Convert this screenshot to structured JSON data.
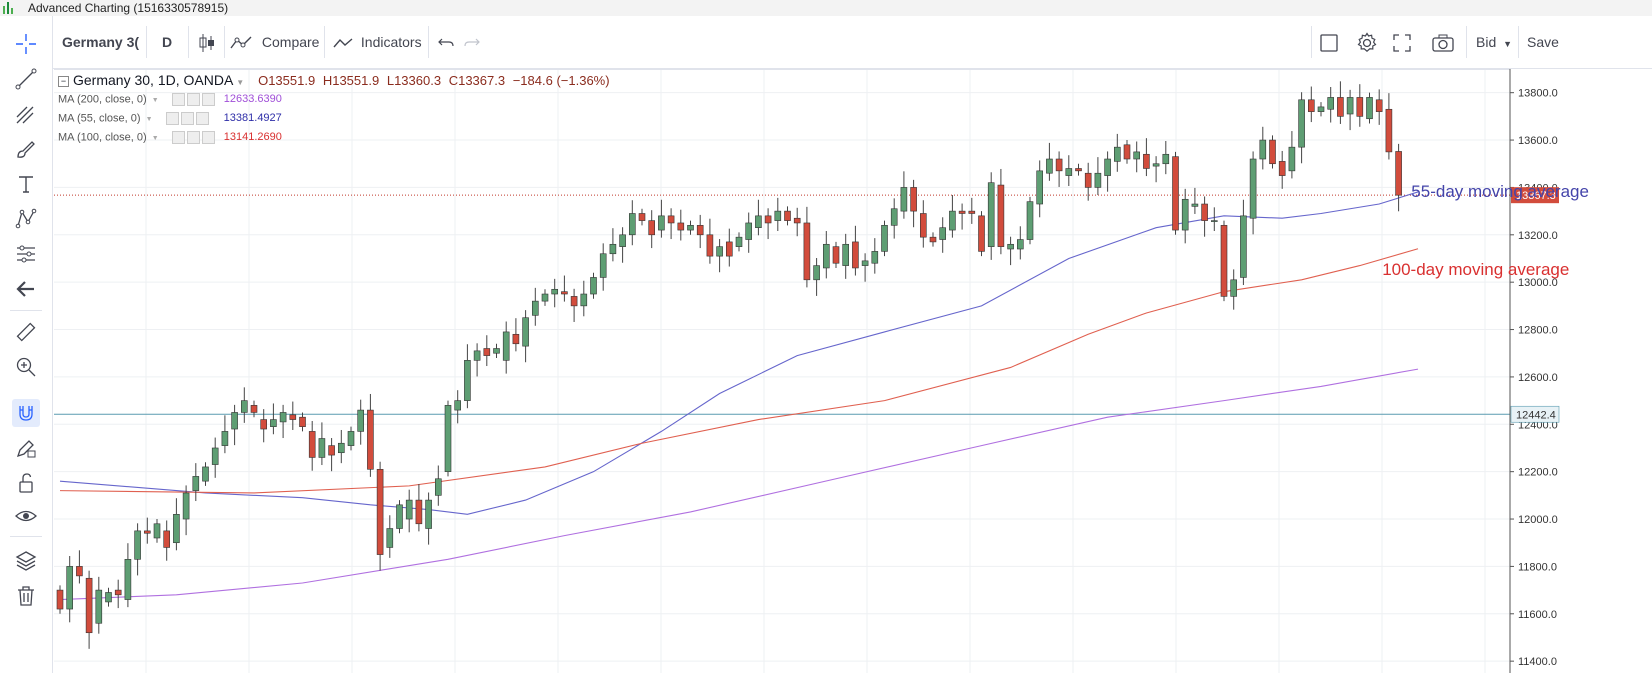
{
  "window": {
    "title": "Advanced Charting (1516330578915)"
  },
  "toolbar": {
    "symbol": "Germany 3(",
    "interval": "D",
    "compare_label": "Compare",
    "indicators_label": "Indicators",
    "price_type": "Bid",
    "save_label": "Save"
  },
  "legend": {
    "symbol_line": "Germany 30, 1D, OANDA",
    "open": "O13551.9",
    "high": "H13551.9",
    "low": "L13360.3",
    "close": "C13367.3",
    "change": "−184.6 (−1.36%)",
    "ma200": {
      "label": "MA (200, close, 0)",
      "value": "12633.6390",
      "color": "#a04fd8"
    },
    "ma55": {
      "label": "MA (55, close, 0)",
      "value": "13381.4927",
      "color": "#2e2ea8"
    },
    "ma100": {
      "label": "MA (100, close, 0)",
      "value": "13141.2690",
      "color": "#d93030"
    }
  },
  "colors": {
    "up": "#5e9e73",
    "down": "#d24c3c",
    "ma55": "#6666cc",
    "ma100": "#e06050",
    "ma200": "#b070e0",
    "accent": "#2962ff"
  },
  "left_icons": [
    "crosshair-icon",
    "trend-line-icon",
    "pitchfork-icon",
    "brush-icon",
    "text-icon",
    "pattern-icon",
    "measure-icon",
    "back-arrow-icon",
    "ruler-icon",
    "zoom-in-icon",
    "magnet-icon",
    "lock-drawing-icon",
    "unlock-icon",
    "eye-icon",
    "layers-icon",
    "trash-icon"
  ],
  "chart_data": {
    "type": "candlestick",
    "ylim": [
      11350,
      13900
    ],
    "yticks": [
      "13800.0",
      "13600.0",
      "13400.0",
      "13200.0",
      "13000.0",
      "12800.0",
      "12600.0",
      "12400.0",
      "12200.0",
      "12000.0",
      "11800.0",
      "11600.0",
      "11400.0"
    ],
    "ytick_values": [
      13800,
      13600,
      13400,
      13200,
      13000,
      12800,
      12600,
      12400,
      12200,
      12000,
      11800,
      11600,
      11400
    ],
    "current_price": "13367.3",
    "current_value": 13367.3,
    "hline_label": "12442.4",
    "hline_value": 12442.4,
    "annotations": [
      {
        "text": "55-day moving average",
        "color": "#4444aa",
        "at_index": 139,
        "value": 13385
      },
      {
        "text": "100-day moving average",
        "color": "#d93030",
        "at_index": 136,
        "value": 13055
      }
    ],
    "candles": [
      [
        11700,
        11620
      ],
      [
        11620,
        11800
      ],
      [
        11800,
        11760
      ],
      [
        11750,
        11520
      ],
      [
        11560,
        11700
      ],
      [
        11650,
        11690
      ],
      [
        11700,
        11680
      ],
      [
        11660,
        11830
      ],
      [
        11830,
        11950
      ],
      [
        11950,
        11940
      ],
      [
        11920,
        11980
      ],
      [
        11950,
        11880
      ],
      [
        11900,
        12020
      ],
      [
        12000,
        12110
      ],
      [
        12120,
        12180
      ],
      [
        12160,
        12220
      ],
      [
        12230,
        12300
      ],
      [
        12310,
        12370
      ],
      [
        12380,
        12450
      ],
      [
        12450,
        12500
      ],
      [
        12480,
        12450
      ],
      [
        12420,
        12380
      ],
      [
        12390,
        12420
      ],
      [
        12410,
        12450
      ],
      [
        12440,
        12420
      ],
      [
        12430,
        12390
      ],
      [
        12370,
        12260
      ],
      [
        12260,
        12340
      ],
      [
        12310,
        12270
      ],
      [
        12280,
        12320
      ],
      [
        12310,
        12370
      ],
      [
        12370,
        12460
      ],
      [
        12460,
        12210
      ],
      [
        12210,
        11850
      ],
      [
        11880,
        11960
      ],
      [
        11960,
        12060
      ],
      [
        12000,
        12080
      ],
      [
        12080,
        11980
      ],
      [
        11960,
        12080
      ],
      [
        12100,
        12170
      ],
      [
        12200,
        12480
      ],
      [
        12460,
        12500
      ],
      [
        12500,
        12670
      ],
      [
        12670,
        12710
      ],
      [
        12720,
        12690
      ],
      [
        12700,
        12720
      ],
      [
        12670,
        12790
      ],
      [
        12780,
        12740
      ],
      [
        12730,
        12850
      ],
      [
        12860,
        12920
      ],
      [
        12920,
        12950
      ],
      [
        12950,
        12970
      ],
      [
        12960,
        12950
      ],
      [
        12940,
        12900
      ],
      [
        12900,
        12950
      ],
      [
        12950,
        13020
      ],
      [
        13020,
        13120
      ],
      [
        13120,
        13160
      ],
      [
        13150,
        13200
      ],
      [
        13200,
        13290
      ],
      [
        13290,
        13260
      ],
      [
        13260,
        13200
      ],
      [
        13220,
        13280
      ],
      [
        13280,
        13250
      ],
      [
        13250,
        13220
      ],
      [
        13220,
        13240
      ],
      [
        13240,
        13200
      ],
      [
        13200,
        13110
      ],
      [
        13110,
        13150
      ],
      [
        13170,
        13110
      ],
      [
        13150,
        13190
      ],
      [
        13180,
        13250
      ],
      [
        13230,
        13280
      ],
      [
        13280,
        13250
      ],
      [
        13260,
        13300
      ],
      [
        13300,
        13260
      ],
      [
        13270,
        13250
      ],
      [
        13250,
        13010
      ],
      [
        13010,
        13070
      ],
      [
        13060,
        13160
      ],
      [
        13150,
        13080
      ],
      [
        13070,
        13160
      ],
      [
        13170,
        13060
      ],
      [
        13070,
        13090
      ],
      [
        13080,
        13130
      ],
      [
        13130,
        13240
      ],
      [
        13240,
        13310
      ],
      [
        13300,
        13400
      ],
      [
        13400,
        13300
      ],
      [
        13290,
        13190
      ],
      [
        13190,
        13170
      ],
      [
        13180,
        13230
      ],
      [
        13220,
        13300
      ],
      [
        13300,
        13290
      ],
      [
        13300,
        13290
      ],
      [
        13280,
        13130
      ],
      [
        13150,
        13420
      ],
      [
        13410,
        13150
      ],
      [
        13140,
        13160
      ],
      [
        13140,
        13180
      ],
      [
        13180,
        13340
      ],
      [
        13330,
        13470
      ],
      [
        13460,
        13520
      ],
      [
        13520,
        13470
      ],
      [
        13450,
        13480
      ],
      [
        13480,
        13470
      ],
      [
        13460,
        13400
      ],
      [
        13400,
        13460
      ],
      [
        13450,
        13520
      ],
      [
        13510,
        13570
      ],
      [
        13580,
        13520
      ],
      [
        13520,
        13550
      ],
      [
        13540,
        13480
      ],
      [
        13490,
        13500
      ],
      [
        13500,
        13540
      ],
      [
        13530,
        13220
      ],
      [
        13220,
        13350
      ],
      [
        13320,
        13330
      ],
      [
        13330,
        13260
      ],
      [
        13260,
        13260
      ],
      [
        13240,
        12940
      ],
      [
        12940,
        13010
      ],
      [
        13020,
        13280
      ],
      [
        13270,
        13520
      ],
      [
        13520,
        13600
      ],
      [
        13600,
        13500
      ],
      [
        13510,
        13450
      ],
      [
        13470,
        13570
      ],
      [
        13570,
        13770
      ],
      [
        13770,
        13720
      ],
      [
        13720,
        13740
      ],
      [
        13730,
        13780
      ],
      [
        13780,
        13700
      ],
      [
        13710,
        13780
      ],
      [
        13780,
        13700
      ],
      [
        13690,
        13780
      ],
      [
        13770,
        13720
      ],
      [
        13730,
        13550
      ],
      [
        13551.9,
        13367.3
      ]
    ],
    "series": [
      {
        "name": "MA (55, close, 0)",
        "color": "#6666cc",
        "points": [
          [
            0,
            12160
          ],
          [
            15,
            12110
          ],
          [
            25,
            12090
          ],
          [
            32,
            12060
          ],
          [
            38,
            12040
          ],
          [
            42,
            12020
          ],
          [
            48,
            12080
          ],
          [
            55,
            12200
          ],
          [
            62,
            12370
          ],
          [
            68,
            12530
          ],
          [
            76,
            12690
          ],
          [
            85,
            12790
          ],
          [
            95,
            12900
          ],
          [
            104,
            13100
          ],
          [
            113,
            13230
          ],
          [
            120,
            13280
          ],
          [
            126,
            13270
          ],
          [
            130,
            13290
          ],
          [
            136,
            13330
          ],
          [
            140,
            13381
          ]
        ]
      },
      {
        "name": "MA (100, close, 0)",
        "color": "#e06050",
        "points": [
          [
            0,
            12120
          ],
          [
            20,
            12110
          ],
          [
            36,
            12140
          ],
          [
            50,
            12220
          ],
          [
            60,
            12320
          ],
          [
            72,
            12420
          ],
          [
            85,
            12500
          ],
          [
            98,
            12640
          ],
          [
            106,
            12780
          ],
          [
            112,
            12870
          ],
          [
            120,
            12960
          ],
          [
            128,
            13010
          ],
          [
            134,
            13070
          ],
          [
            140,
            13141
          ]
        ]
      },
      {
        "name": "MA (200, close, 0)",
        "color": "#b070e0",
        "points": [
          [
            0,
            11660
          ],
          [
            12,
            11680
          ],
          [
            25,
            11730
          ],
          [
            40,
            11830
          ],
          [
            52,
            11930
          ],
          [
            65,
            12030
          ],
          [
            80,
            12170
          ],
          [
            95,
            12310
          ],
          [
            108,
            12430
          ],
          [
            120,
            12500
          ],
          [
            130,
            12560
          ],
          [
            140,
            12633
          ]
        ]
      }
    ]
  }
}
